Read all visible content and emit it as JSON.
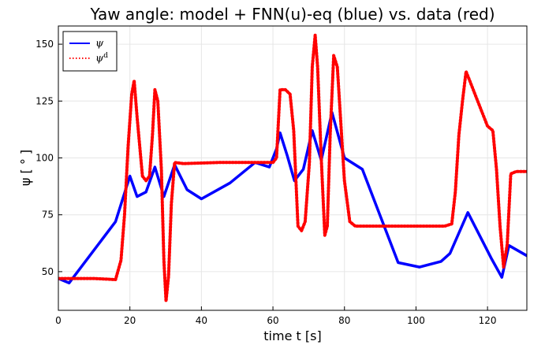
{
  "chart_data": {
    "type": "line",
    "title": "Yaw angle: model + FNN(u)-eq (blue) vs. data (red)",
    "xlabel": "time t [s]",
    "ylabel": "ψ [ ° ]",
    "xlim": [
      0,
      131
    ],
    "ylim": [
      33,
      158
    ],
    "xticks": [
      0,
      20,
      40,
      60,
      80,
      100,
      120
    ],
    "yticks": [
      50,
      75,
      100,
      125,
      150
    ],
    "grid": true,
    "legend": "top-left",
    "series": [
      {
        "name": "ψ",
        "color": "#0000ff",
        "style": "solid",
        "x": [
          0,
          3,
          16,
          20,
          22,
          24.5,
          27,
          29.5,
          32.5,
          36,
          40,
          48,
          55,
          59,
          61,
          62,
          64,
          66,
          68.5,
          71,
          73.5,
          76.5,
          80,
          85,
          95,
          101,
          107,
          109.5,
          114.5,
          121,
          124,
          126,
          131
        ],
        "y": [
          47,
          45,
          72,
          92,
          83,
          85,
          96,
          83,
          97,
          86,
          82,
          89,
          98,
          96,
          104,
          111,
          101,
          90,
          95,
          112,
          99,
          120,
          100,
          95,
          54,
          52,
          54.5,
          58,
          76,
          56,
          47.5,
          61.5,
          57
        ]
      },
      {
        "name": "ψ^d",
        "color": "#ff0000",
        "style": "dotted",
        "x": [
          0,
          10,
          16,
          17.5,
          18.5,
          19.5,
          20.5,
          21.2,
          22,
          23.5,
          24.5,
          25.5,
          26.3,
          27,
          27.8,
          28.8,
          29.5,
          30.1,
          30.8,
          31.6,
          32.5,
          35,
          45,
          55,
          60,
          61,
          62,
          63.5,
          64.8,
          65.8,
          67,
          68,
          69,
          70.2,
          71,
          71.8,
          72.5,
          73.5,
          74.5,
          75.2,
          76,
          77,
          78,
          79,
          80,
          81.5,
          83,
          85,
          100,
          108,
          110,
          111,
          112,
          113,
          114,
          115,
          117,
          120,
          121.5,
          122.5,
          123.5,
          124.5,
          125.5,
          126.5,
          128,
          131
        ],
        "y": [
          47,
          47,
          46.5,
          55,
          75,
          105,
          128,
          134,
          118,
          92,
          90,
          92,
          110,
          130,
          125,
          95,
          55,
          37,
          48,
          80,
          98,
          97.5,
          98,
          98,
          98,
          100,
          130,
          130,
          128,
          112,
          70,
          68,
          72,
          98,
          140,
          154,
          140,
          100,
          66,
          70,
          110,
          145,
          140,
          115,
          90,
          72,
          70,
          70,
          70,
          70,
          71,
          85,
          110,
          125,
          138,
          134,
          126,
          114,
          112,
          95,
          70,
          52,
          62,
          93,
          94,
          94
        ]
      }
    ]
  }
}
